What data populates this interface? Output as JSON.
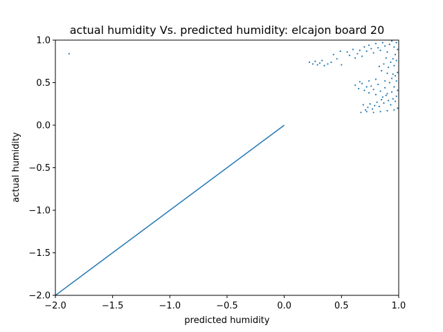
{
  "chart_data": {
    "type": "scatter",
    "title": "actual humidity Vs. predicted humidity: elcajon board 20",
    "xlabel": "predicted humidity",
    "ylabel": "actual humidity",
    "xlim": [
      -2.0,
      1.0
    ],
    "ylim": [
      -2.0,
      1.0
    ],
    "xticks": [
      -2.0,
      -1.5,
      -1.0,
      -0.5,
      0.0,
      0.5,
      1.0
    ],
    "yticks": [
      -2.0,
      -1.5,
      -1.0,
      -0.5,
      0.0,
      0.5,
      1.0
    ],
    "xtick_labels": [
      "−2.0",
      "−1.5",
      "−1.0",
      "−0.5",
      "0.0",
      "0.5",
      "1.0"
    ],
    "ytick_labels": [
      "−2.0",
      "−1.5",
      "−1.0",
      "−0.5",
      "0.0",
      "0.5",
      "1.0"
    ],
    "grid": false,
    "color": "#1f77b4",
    "reference_line": {
      "x": [
        -2.0,
        0.0
      ],
      "y": [
        -2.0,
        0.0
      ]
    },
    "series": [
      {
        "points": [
          [
            -1.88,
            0.84
          ],
          [
            0.22,
            0.74
          ],
          [
            0.25,
            0.72
          ],
          [
            0.27,
            0.75
          ],
          [
            0.29,
            0.71
          ],
          [
            0.31,
            0.73
          ],
          [
            0.33,
            0.76
          ],
          [
            0.35,
            0.7
          ],
          [
            0.38,
            0.72
          ],
          [
            0.41,
            0.74
          ],
          [
            0.43,
            0.83
          ],
          [
            0.46,
            0.78
          ],
          [
            0.49,
            0.87
          ],
          [
            0.5,
            0.71
          ],
          [
            0.55,
            0.86
          ],
          [
            0.57,
            0.82
          ],
          [
            0.6,
            0.89
          ],
          [
            0.62,
            0.79
          ],
          [
            0.64,
            0.84
          ],
          [
            0.66,
            0.88
          ],
          [
            0.68,
            0.81
          ],
          [
            0.7,
            0.92
          ],
          [
            0.72,
            0.87
          ],
          [
            0.74,
            0.94
          ],
          [
            0.76,
            0.9
          ],
          [
            0.78,
            0.85
          ],
          [
            0.8,
            0.96
          ],
          [
            0.82,
            0.91
          ],
          [
            0.84,
            0.88
          ],
          [
            0.86,
            0.97
          ],
          [
            0.88,
            0.93
          ],
          [
            0.9,
            0.86
          ],
          [
            0.92,
            0.95
          ],
          [
            0.94,
            0.99
          ],
          [
            0.96,
            0.92
          ],
          [
            0.98,
            0.97
          ],
          [
            0.99,
            0.89
          ],
          [
            0.97,
            0.83
          ],
          [
            0.95,
            0.78
          ],
          [
            0.93,
            0.74
          ],
          [
            0.91,
            0.68
          ],
          [
            0.89,
            0.79
          ],
          [
            0.87,
            0.72
          ],
          [
            0.85,
            0.64
          ],
          [
            0.83,
            0.69
          ],
          [
            0.98,
            0.76
          ],
          [
            0.96,
            0.7
          ],
          [
            0.99,
            0.62
          ],
          [
            0.97,
            0.58
          ],
          [
            0.9,
            0.61
          ],
          [
            0.94,
            0.55
          ],
          [
            0.62,
            0.47
          ],
          [
            0.65,
            0.43
          ],
          [
            0.68,
            0.49
          ],
          [
            0.7,
            0.41
          ],
          [
            0.72,
            0.45
          ],
          [
            0.74,
            0.38
          ],
          [
            0.76,
            0.46
          ],
          [
            0.78,
            0.42
          ],
          [
            0.8,
            0.36
          ],
          [
            0.82,
            0.48
          ],
          [
            0.84,
            0.4
          ],
          [
            0.86,
            0.33
          ],
          [
            0.88,
            0.44
          ],
          [
            0.9,
            0.37
          ],
          [
            0.92,
            0.5
          ],
          [
            0.94,
            0.39
          ],
          [
            0.96,
            0.45
          ],
          [
            0.98,
            0.34
          ],
          [
            0.99,
            0.41
          ],
          [
            0.97,
            0.28
          ],
          [
            0.95,
            0.31
          ],
          [
            0.93,
            0.24
          ],
          [
            0.91,
            0.29
          ],
          [
            0.89,
            0.35
          ],
          [
            0.87,
            0.26
          ],
          [
            0.85,
            0.3
          ],
          [
            0.83,
            0.22
          ],
          [
            0.81,
            0.27
          ],
          [
            0.79,
            0.23
          ],
          [
            0.77,
            0.19
          ],
          [
            0.75,
            0.25
          ],
          [
            0.73,
            0.21
          ],
          [
            0.71,
            0.18
          ],
          [
            0.69,
            0.24
          ],
          [
            0.67,
            0.15
          ],
          [
            0.72,
            0.16
          ],
          [
            0.78,
            0.15
          ],
          [
            0.84,
            0.16
          ],
          [
            0.9,
            0.17
          ],
          [
            0.96,
            0.18
          ],
          [
            0.99,
            0.2
          ],
          [
            0.98,
            0.52
          ],
          [
            0.95,
            0.6
          ],
          [
            0.88,
            0.52
          ],
          [
            0.8,
            0.54
          ],
          [
            0.74,
            0.52
          ],
          [
            0.66,
            0.51
          ]
        ]
      }
    ]
  }
}
